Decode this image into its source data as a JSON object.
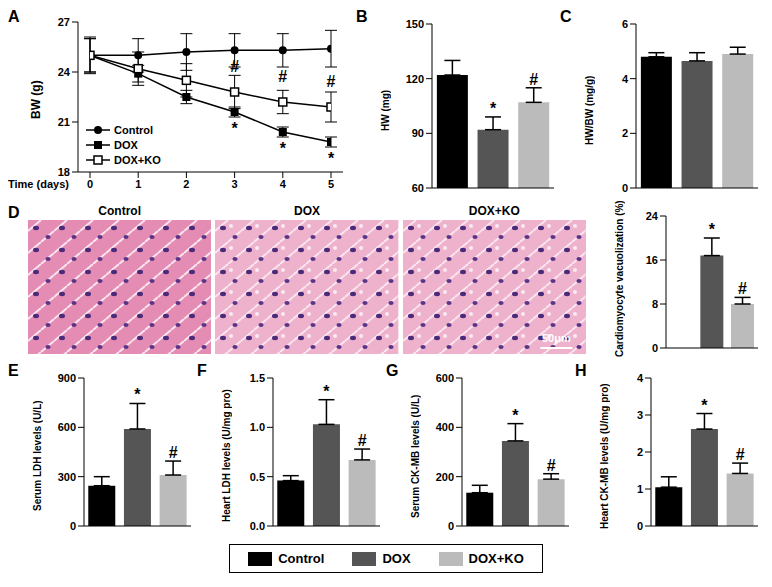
{
  "chart_data": [
    {
      "title": "A",
      "type": "line",
      "x": [
        0,
        1,
        2,
        3,
        4,
        5
      ],
      "xlim": [
        0,
        5
      ],
      "xticks": [
        0,
        1,
        2,
        3,
        4,
        5
      ],
      "x_label": "Time (days)",
      "y_label": "BW (g)",
      "ylim": [
        18,
        27
      ],
      "yticks": [
        18,
        21,
        24,
        27
      ],
      "legend": "lower left",
      "series": [
        {
          "name": "Control",
          "color": "#000000",
          "marker": "circle",
          "values": [
            25.0,
            25.0,
            25.2,
            25.3,
            25.3,
            25.4
          ],
          "errors": [
            1.1,
            1.0,
            1.1,
            1.0,
            1.0,
            1.1
          ]
        },
        {
          "name": "DOX",
          "color": "#000000",
          "marker": "square",
          "values": [
            25.0,
            23.9,
            22.5,
            21.6,
            20.4,
            19.8
          ],
          "errors": [
            1.0,
            0.5,
            0.4,
            0.3,
            0.3,
            0.3
          ]
        },
        {
          "name": "DOX+KO",
          "color": "#000000",
          "marker": "open_square",
          "values": [
            25.0,
            24.2,
            23.5,
            22.8,
            22.2,
            21.9
          ],
          "errors": [
            1.0,
            1.0,
            1.0,
            1.0,
            0.7,
            0.9
          ]
        }
      ],
      "annotations": [
        {
          "series": "DOX",
          "x": 3,
          "text": "*",
          "position": "below"
        },
        {
          "series": "DOX",
          "x": 4,
          "text": "*",
          "position": "below"
        },
        {
          "series": "DOX",
          "x": 5,
          "text": "*",
          "position": "below"
        },
        {
          "series": "DOX+KO",
          "x": 3,
          "text": "#",
          "position": "above"
        },
        {
          "series": "DOX+KO",
          "x": 4,
          "text": "#",
          "position": "above"
        },
        {
          "series": "DOX+KO",
          "x": 5,
          "text": "#",
          "position": "above"
        }
      ]
    },
    {
      "title": "B",
      "type": "bar",
      "categories": [
        "Control",
        "DOX",
        "DOX+KO"
      ],
      "values": [
        122,
        92,
        107
      ],
      "errors": [
        8,
        7,
        8
      ],
      "colors": [
        "#000000",
        "#555555",
        "#bbbbbb"
      ],
      "y_label": "HW (mg)",
      "ylim": [
        60,
        150
      ],
      "yticks": [
        60,
        90,
        120,
        150
      ],
      "tick_labels": "y",
      "annotations": [
        null,
        "*",
        "#"
      ]
    },
    {
      "title": "C",
      "type": "bar",
      "categories": [
        "Control",
        "DOX",
        "DOX+KO"
      ],
      "values": [
        4.8,
        4.65,
        4.9
      ],
      "errors": [
        0.15,
        0.3,
        0.25
      ],
      "colors": [
        "#000000",
        "#555555",
        "#bbbbbb"
      ],
      "y_label": "HW/BW (mg/g)",
      "ylim": [
        0,
        6
      ],
      "yticks": [
        0,
        2,
        4,
        6
      ],
      "tick_labels": "y",
      "annotations": [
        null,
        null,
        null
      ]
    },
    {
      "type": "bar",
      "categories": [
        "Control",
        "DOX",
        "DOX+KO"
      ],
      "values": [
        0,
        16.8,
        8
      ],
      "errors": [
        0,
        3.2,
        1.2
      ],
      "colors": [
        "#000000",
        "#555555",
        "#bbbbbb"
      ],
      "y_label": "Cardiomyocyte vacuolization (%)",
      "ylim": [
        0,
        24
      ],
      "yticks": [
        0,
        8,
        16,
        24
      ],
      "tick_labels": "y",
      "annotations": [
        null,
        "*",
        "#"
      ]
    },
    {
      "title": "E",
      "type": "bar",
      "categories": [
        "Control",
        "DOX",
        "DOX+KO"
      ],
      "values": [
        245,
        590,
        310
      ],
      "errors": [
        55,
        155,
        85
      ],
      "colors": [
        "#000000",
        "#555555",
        "#bbbbbb"
      ],
      "y_label": "Serum LDH levels (U/L)",
      "ylim": [
        0,
        900
      ],
      "yticks": [
        0,
        300,
        600,
        900
      ],
      "tick_labels": "y",
      "annotations": [
        null,
        "*",
        "#"
      ]
    },
    {
      "title": "F",
      "type": "bar",
      "categories": [
        "Control",
        "DOX",
        "DOX+KO"
      ],
      "values": [
        0.46,
        1.03,
        0.67
      ],
      "errors": [
        0.05,
        0.25,
        0.11
      ],
      "colors": [
        "#000000",
        "#555555",
        "#bbbbbb"
      ],
      "y_label": "Heart LDH levels (U/mg pro)",
      "ylim": [
        0,
        1.5
      ],
      "yticks": [
        {
          "value": 0,
          "label": "0.0"
        },
        0.5,
        {
          "value": 1,
          "label": "1.0"
        },
        1.5
      ],
      "tick_labels": "y",
      "annotations": [
        null,
        "*",
        "#"
      ]
    },
    {
      "title": "G",
      "type": "bar",
      "categories": [
        "Control",
        "DOX",
        "DOX+KO"
      ],
      "values": [
        135,
        345,
        190
      ],
      "errors": [
        30,
        70,
        22
      ],
      "colors": [
        "#000000",
        "#555555",
        "#bbbbbb"
      ],
      "y_label": "Serum CK-MB levels (U/L)",
      "ylim": [
        0,
        600
      ],
      "yticks": [
        0,
        200,
        400,
        600
      ],
      "tick_labels": "y",
      "annotations": [
        null,
        "*",
        "#"
      ]
    },
    {
      "title": "H",
      "type": "bar",
      "categories": [
        "Control",
        "DOX",
        "DOX+KO"
      ],
      "values": [
        1.05,
        2.62,
        1.42
      ],
      "errors": [
        0.28,
        0.42,
        0.28
      ],
      "colors": [
        "#000000",
        "#555555",
        "#bbbbbb"
      ],
      "y_label": "Heart CK-MB levels (U/mg pro)",
      "ylim": [
        0,
        4
      ],
      "yticks": [
        0,
        1,
        2,
        3,
        4
      ],
      "tick_labels": "y",
      "annotations": [
        null,
        "*",
        "#"
      ]
    }
  ],
  "micrographs": {
    "title": "D",
    "captions": [
      "Control",
      "DOX",
      "DOX+KO"
    ],
    "scale_bar": "50μm"
  },
  "legend_box": {
    "labels": [
      "Control",
      "DOX",
      "DOX+KO"
    ],
    "colors": [
      "#000000",
      "#555555",
      "#bbbbbb"
    ]
  }
}
